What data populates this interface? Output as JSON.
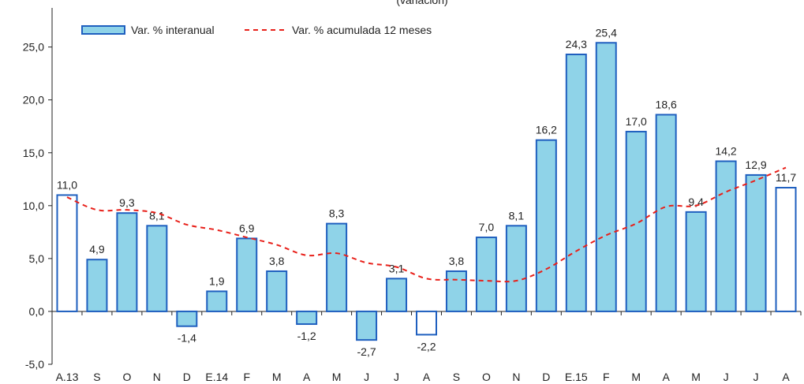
{
  "chart_data": {
    "type": "bar",
    "subtitle": "(variación)",
    "categories": [
      "A.13",
      "S",
      "O",
      "N",
      "D",
      "E.14",
      "F",
      "M",
      "A",
      "M",
      "J",
      "J",
      "A",
      "S",
      "O",
      "N",
      "D",
      "E.15",
      "F",
      "M",
      "A",
      "M",
      "J",
      "J",
      "A"
    ],
    "series": [
      {
        "name": "Var. % interanual",
        "type": "bar",
        "color": "#8fd3e8",
        "edge_color": "#1f5fbf",
        "values": [
          11.0,
          4.9,
          9.3,
          8.1,
          -1.4,
          1.9,
          6.9,
          3.8,
          -1.2,
          8.3,
          -2.7,
          3.1,
          -2.2,
          3.8,
          7.0,
          8.1,
          16.2,
          24.3,
          25.4,
          17.0,
          18.6,
          9.4,
          14.2,
          12.9,
          11.7
        ],
        "labels": [
          "11,0",
          "4,9",
          "9,3",
          "8,1",
          "-1,4",
          "1,9",
          "6,9",
          "3,8",
          "-1,2",
          "8,3",
          "-2,7",
          "3,1",
          "-2,2",
          "3,8",
          "7,0",
          "8,1",
          "16,2",
          "24,3",
          "25,4",
          "17,0",
          "18,6",
          "9,4",
          "14,2",
          "12,9",
          "11,7"
        ],
        "unfilled_indices": [
          0,
          12,
          24
        ]
      },
      {
        "name": "Var. % acumulada 12 meses",
        "type": "line",
        "style": "dashed",
        "color": "#e8201a",
        "values": [
          10.8,
          9.6,
          9.6,
          9.3,
          8.2,
          7.7,
          7.0,
          6.3,
          5.3,
          5.5,
          4.6,
          4.2,
          3.1,
          3.0,
          2.9,
          2.9,
          4.0,
          5.7,
          7.2,
          8.3,
          9.9,
          10.0,
          11.3,
          12.4,
          13.6
        ]
      }
    ],
    "yticks": [
      "-5,0",
      "0,0",
      "5,0",
      "10,0",
      "15,0",
      "20,0",
      "25,0"
    ],
    "ytick_values": [
      -5,
      0,
      5,
      10,
      15,
      20,
      25
    ],
    "ylim": [
      -5,
      28.7
    ],
    "grid": false,
    "legend_position": "top-left"
  }
}
